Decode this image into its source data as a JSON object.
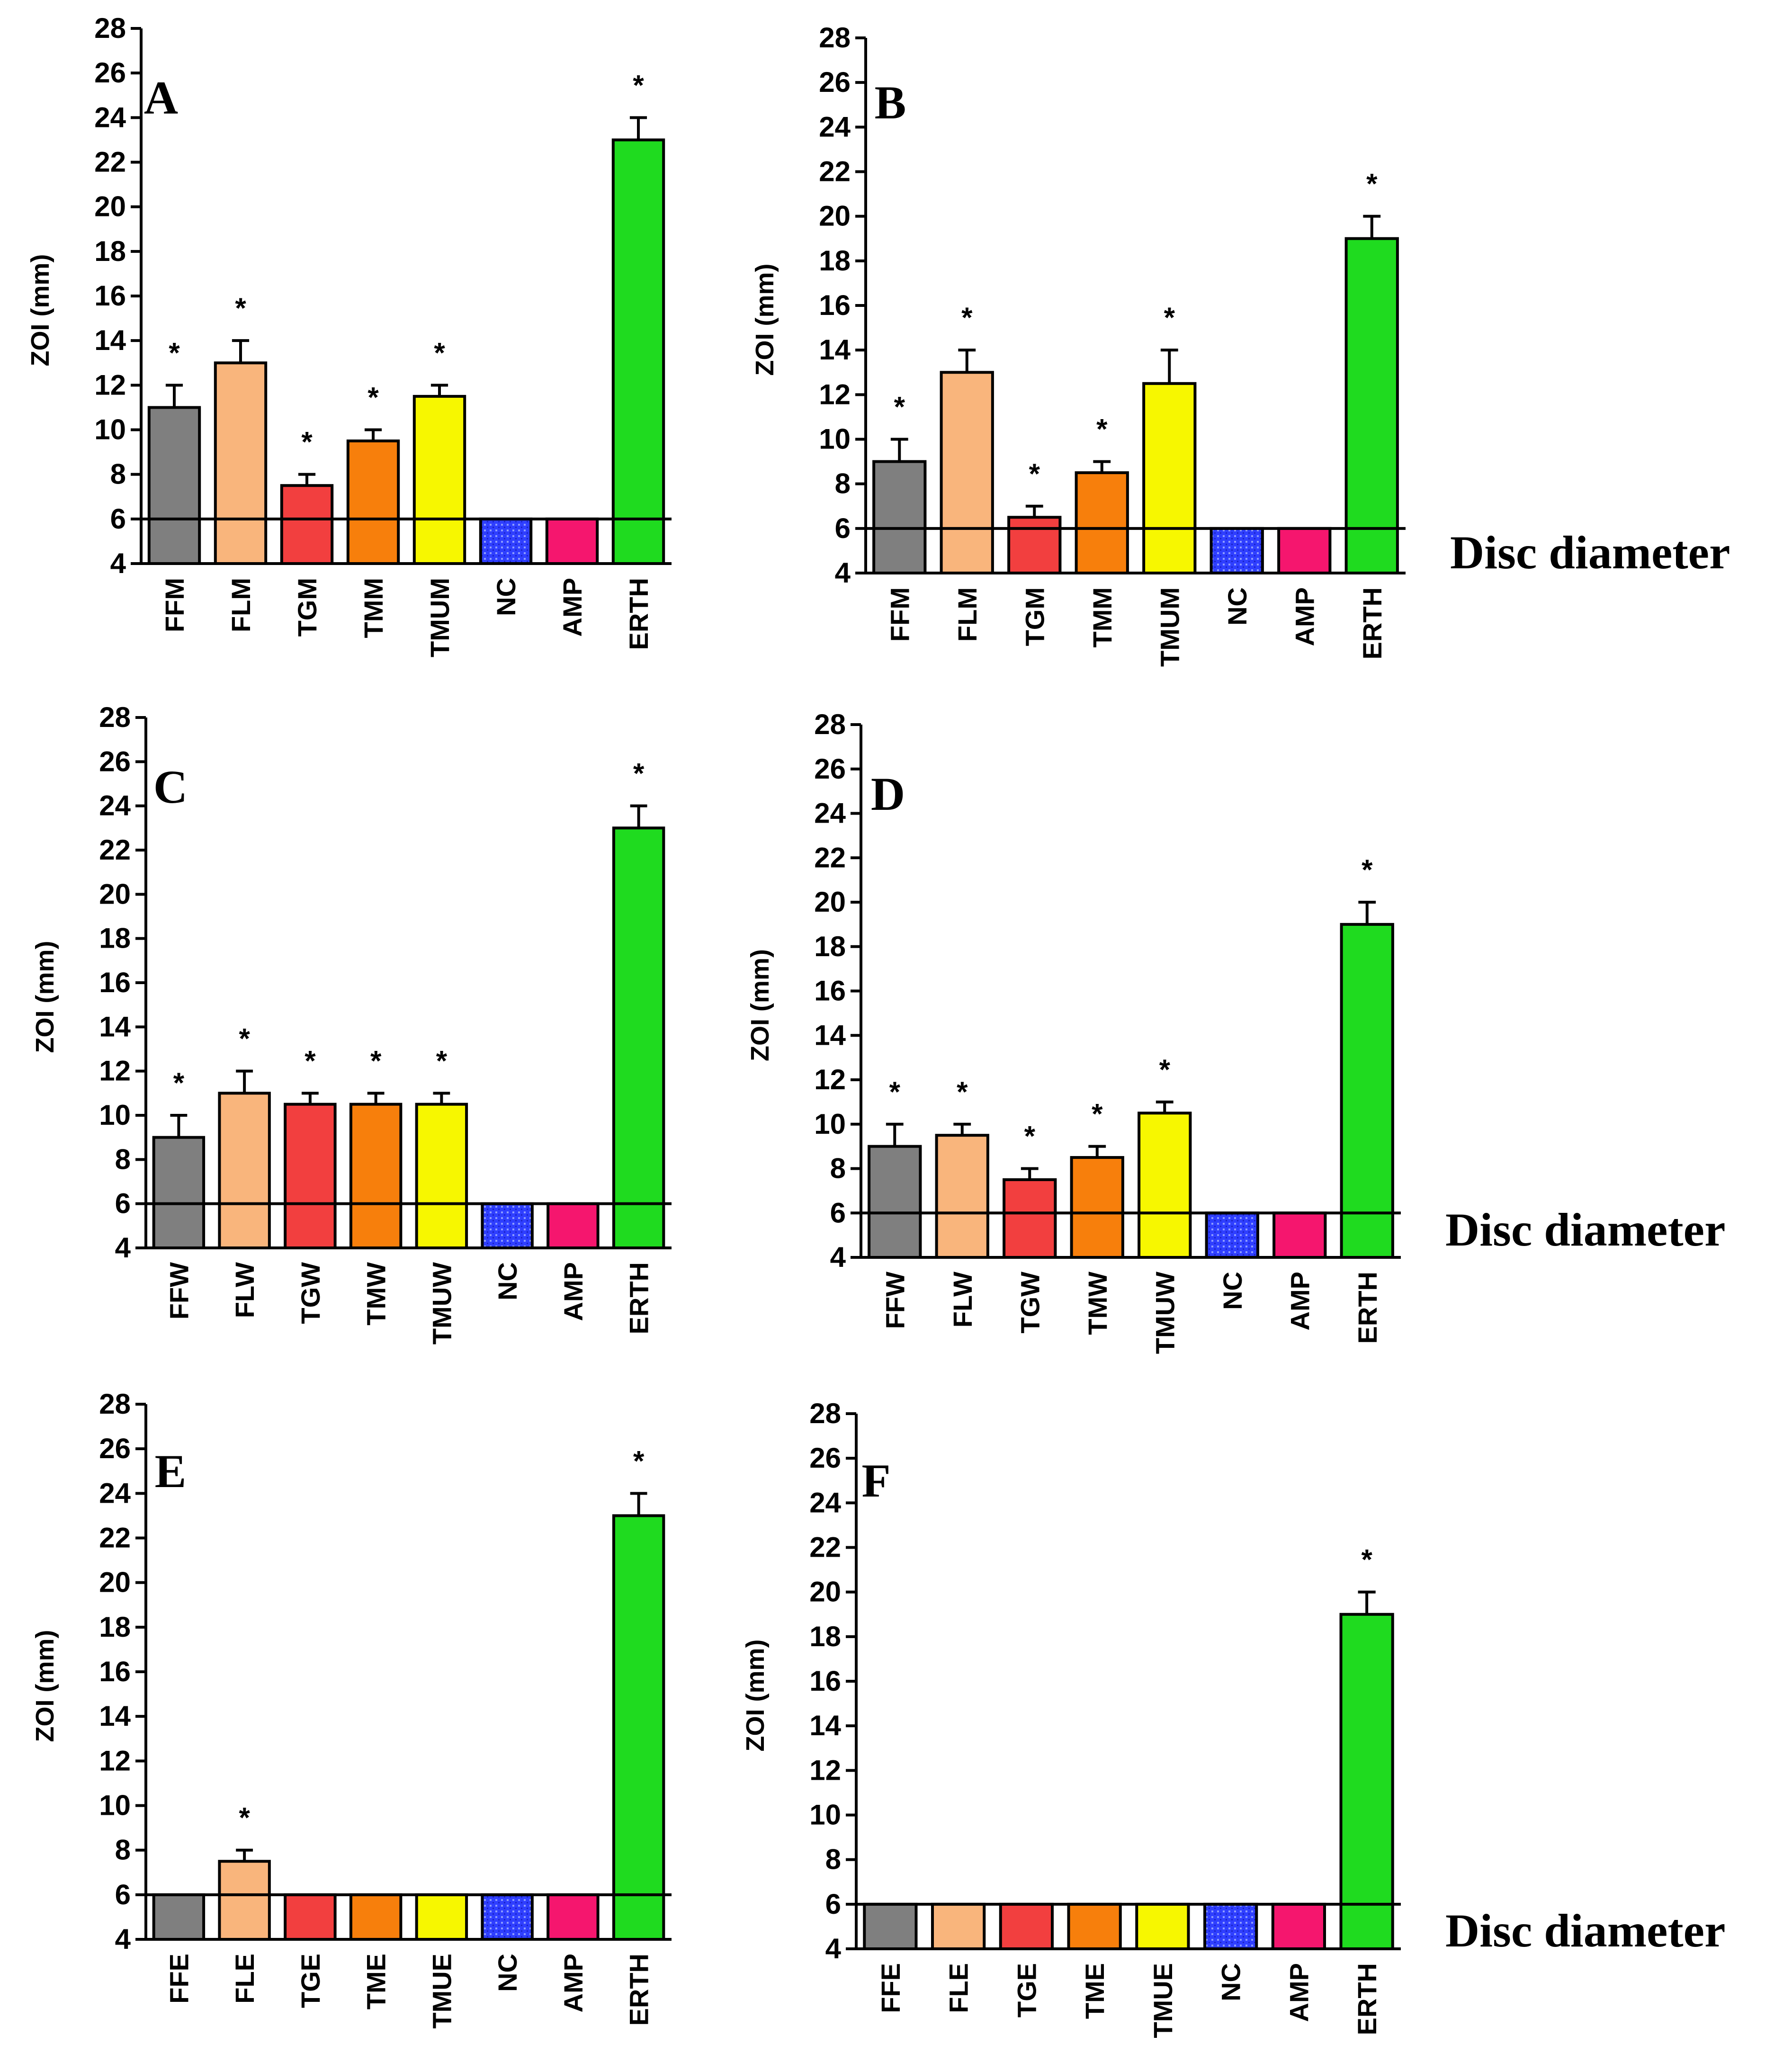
{
  "figure": {
    "disc_label": "Disc diameter",
    "colors": {
      "ff": "#7f7f7f",
      "fl": "#f9b57c",
      "tg": "#f23f3f",
      "tm": "#f77f0c",
      "tmu": "#f7f700",
      "nc": "#2f3fff",
      "amp": "#f5166e",
      "erth": "#1fdb1f"
    }
  },
  "chart_data": [
    {
      "type": "bar",
      "panel": "A",
      "ylabel": "ZOI (mm)",
      "ylim": [
        4,
        28
      ],
      "yticks": [
        4,
        6,
        8,
        10,
        12,
        14,
        16,
        18,
        20,
        22,
        24,
        26,
        28
      ],
      "reference_line": 6,
      "disc_label": false,
      "categories": [
        "FFM",
        "FLM",
        "TGM",
        "TMM",
        "TMUM",
        "NC",
        "AMP",
        "ERTH"
      ],
      "values": [
        11,
        13,
        7.5,
        9.5,
        11.5,
        6,
        6,
        23
      ],
      "errors": [
        1,
        1,
        0.5,
        0.5,
        0.5,
        0,
        0,
        1
      ],
      "significance": [
        "*",
        "*",
        "*",
        "*",
        "*",
        "",
        "",
        "*"
      ]
    },
    {
      "type": "bar",
      "panel": "B",
      "ylabel": "ZOI (mm)",
      "ylim": [
        4,
        28
      ],
      "yticks": [
        4,
        6,
        8,
        10,
        12,
        14,
        16,
        18,
        20,
        22,
        24,
        26,
        28
      ],
      "reference_line": 6,
      "disc_label": true,
      "categories": [
        "FFM",
        "FLM",
        "TGM",
        "TMM",
        "TMUM",
        "NC",
        "AMP",
        "ERTH"
      ],
      "values": [
        9,
        13,
        6.5,
        8.5,
        12.5,
        6,
        6,
        19
      ],
      "errors": [
        1,
        1,
        0.5,
        0.5,
        1.5,
        0,
        0,
        1
      ],
      "significance": [
        "*",
        "*",
        "*",
        "*",
        "*",
        "",
        "",
        "*"
      ]
    },
    {
      "type": "bar",
      "panel": "C",
      "ylabel": "ZOI (mm)",
      "ylim": [
        4,
        28
      ],
      "yticks": [
        4,
        6,
        8,
        10,
        12,
        14,
        16,
        18,
        20,
        22,
        24,
        26,
        28
      ],
      "reference_line": 6,
      "disc_label": false,
      "categories": [
        "FFW",
        "FLW",
        "TGW",
        "TMW",
        "TMUW",
        "NC",
        "AMP",
        "ERTH"
      ],
      "values": [
        9,
        11,
        10.5,
        10.5,
        10.5,
        6,
        6,
        23
      ],
      "errors": [
        1,
        1,
        0.5,
        0.5,
        0.5,
        0,
        0,
        1
      ],
      "significance": [
        "*",
        "*",
        "*",
        "*",
        "*",
        "",
        "",
        "*"
      ]
    },
    {
      "type": "bar",
      "panel": "D",
      "ylabel": "ZOI (mm)",
      "ylim": [
        4,
        28
      ],
      "yticks": [
        4,
        6,
        8,
        10,
        12,
        14,
        16,
        18,
        20,
        22,
        24,
        26,
        28
      ],
      "reference_line": 6,
      "disc_label": true,
      "categories": [
        "FFW",
        "FLW",
        "TGW",
        "TMW",
        "TMUW",
        "NC",
        "AMP",
        "ERTH"
      ],
      "values": [
        9,
        9.5,
        7.5,
        8.5,
        10.5,
        6,
        6,
        19
      ],
      "errors": [
        1,
        0.5,
        0.5,
        0.5,
        0.5,
        0,
        0,
        1
      ],
      "significance": [
        "*",
        "*",
        "*",
        "*",
        "*",
        "",
        "",
        "*"
      ]
    },
    {
      "type": "bar",
      "panel": "E",
      "ylabel": "ZOI (mm)",
      "ylim": [
        4,
        28
      ],
      "yticks": [
        4,
        6,
        8,
        10,
        12,
        14,
        16,
        18,
        20,
        22,
        24,
        26,
        28
      ],
      "reference_line": 6,
      "disc_label": false,
      "categories": [
        "FFE",
        "FLE",
        "TGE",
        "TME",
        "TMUE",
        "NC",
        "AMP",
        "ERTH"
      ],
      "values": [
        6,
        7.5,
        6,
        6,
        6,
        6,
        6,
        23
      ],
      "errors": [
        0,
        0.5,
        0,
        0,
        0,
        0,
        0,
        1
      ],
      "significance": [
        "",
        "*",
        "",
        "",
        "",
        "",
        "",
        "*"
      ]
    },
    {
      "type": "bar",
      "panel": "F",
      "ylabel": "ZOI (mm)",
      "ylim": [
        4,
        28
      ],
      "yticks": [
        4,
        6,
        8,
        10,
        12,
        14,
        16,
        18,
        20,
        22,
        24,
        26,
        28
      ],
      "reference_line": 6,
      "disc_label": true,
      "categories": [
        "FFE",
        "FLE",
        "TGE",
        "TME",
        "TMUE",
        "NC",
        "AMP",
        "ERTH"
      ],
      "values": [
        6,
        6,
        6,
        6,
        6,
        6,
        6,
        19
      ],
      "errors": [
        0,
        0,
        0,
        0,
        0,
        0,
        0,
        1
      ],
      "significance": [
        "",
        "",
        "",
        "",
        "",
        "",
        "",
        "*"
      ]
    }
  ]
}
